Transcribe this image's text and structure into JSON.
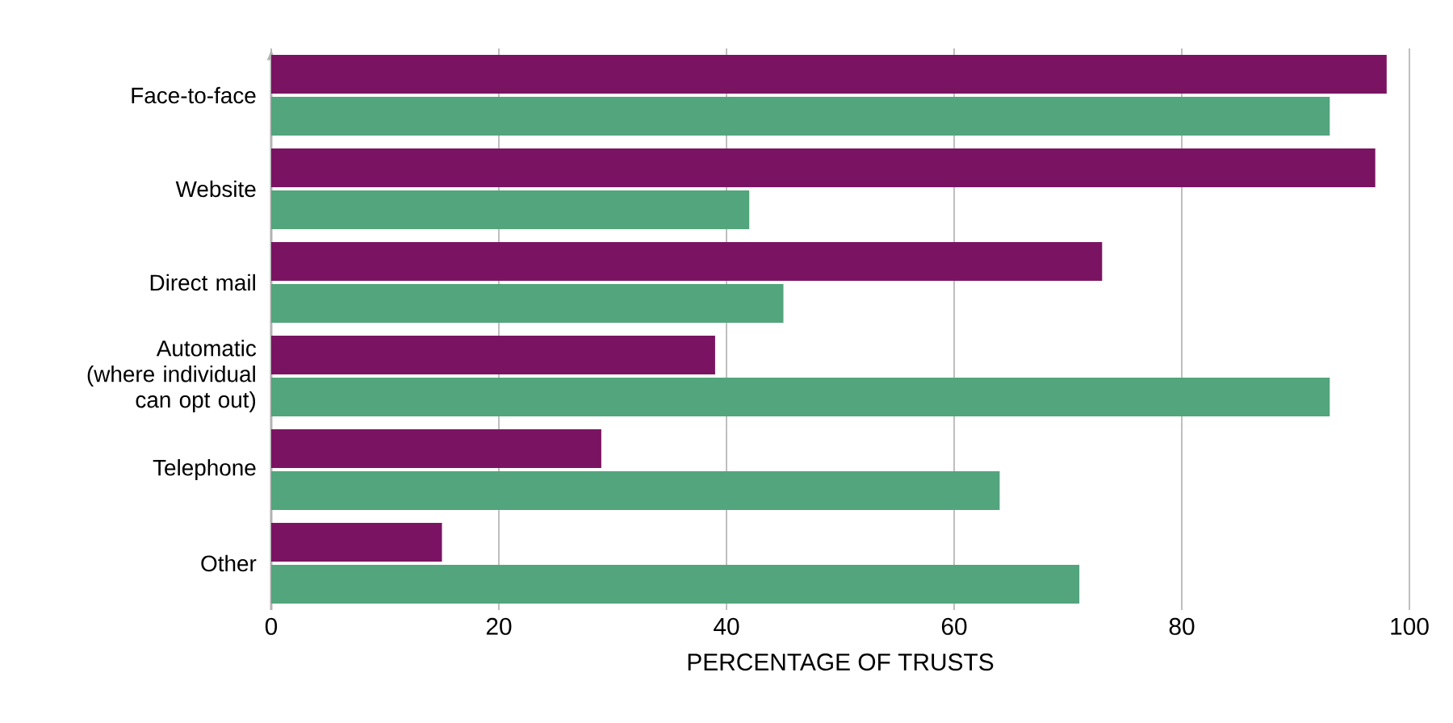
{
  "chart_data": {
    "type": "bar",
    "orientation": "horizontal",
    "xlabel": "PERCENTAGE OF TRUSTS",
    "categories": [
      "Face-to-face",
      "Website",
      "Direct mail",
      "Automatic (where individual can opt out)",
      "Telephone",
      "Other"
    ],
    "series": [
      {
        "color": "#7a1462",
        "values": [
          98,
          97,
          73,
          39,
          29,
          15
        ]
      },
      {
        "color": "#52a57c",
        "values": [
          93,
          42,
          45,
          93,
          64,
          71
        ]
      }
    ],
    "xlim": [
      0,
      100
    ],
    "xticks": [
      0,
      20,
      40,
      60,
      80,
      100
    ],
    "grid": "x"
  }
}
